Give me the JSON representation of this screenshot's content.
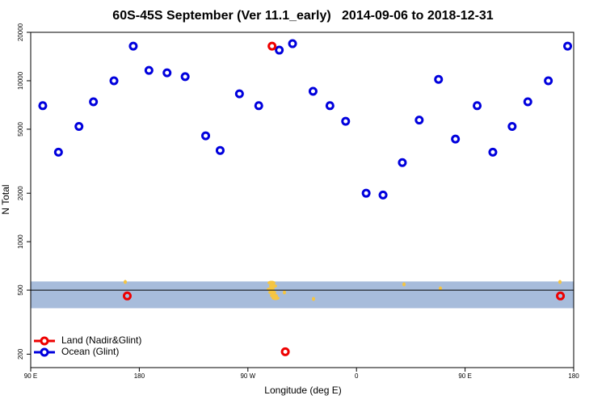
{
  "chart_data": {
    "type": "scatter",
    "title": "60S-45S September (Ver 11.1_early)   2014-09-06 to 2018-12-31",
    "x_label": "Longitude (deg E)",
    "y_label": "N Total",
    "log_y": true,
    "legend": "bottom-left",
    "xlim": [
      90,
      540
    ],
    "ylim": [
      165,
      20000
    ],
    "xticks": [
      {
        "value": 90,
        "label": "90 E"
      },
      {
        "value": 180,
        "label": "180"
      },
      {
        "value": 270,
        "label": "90 W"
      },
      {
        "value": 360,
        "label": "0"
      },
      {
        "value": 450,
        "label": "90 E"
      },
      {
        "value": 540,
        "label": "180"
      }
    ],
    "yticks": [
      200,
      500,
      1000,
      2000,
      5000,
      10000,
      20000
    ],
    "band": {
      "color": "#a7bcdb",
      "range": [
        386,
        566
      ]
    },
    "hline": 500,
    "series": [
      {
        "name": "Land (Nadir&Glint)",
        "color": "#ee0000",
        "x": [
          170,
          290,
          301,
          529
        ],
        "values": [
          460,
          16400,
          207,
          460
        ]
      },
      {
        "name": "Ocean (Glint)",
        "color": "#0000dd",
        "x": [
          100,
          113,
          130,
          142,
          159,
          175,
          188,
          203,
          218,
          235,
          247,
          263,
          279,
          296,
          307,
          324,
          338,
          351,
          368,
          382,
          398,
          412,
          428,
          442,
          460,
          473,
          489,
          502,
          519,
          535
        ],
        "values": [
          7000,
          3600,
          5200,
          7400,
          10000,
          16400,
          11600,
          11200,
          10600,
          4550,
          3690,
          8300,
          7000,
          15500,
          17000,
          8600,
          7000,
          5600,
          2000,
          1950,
          3100,
          5700,
          10200,
          4340,
          7000,
          3600,
          5200,
          7400,
          10000,
          16400
        ]
      }
    ]
  }
}
